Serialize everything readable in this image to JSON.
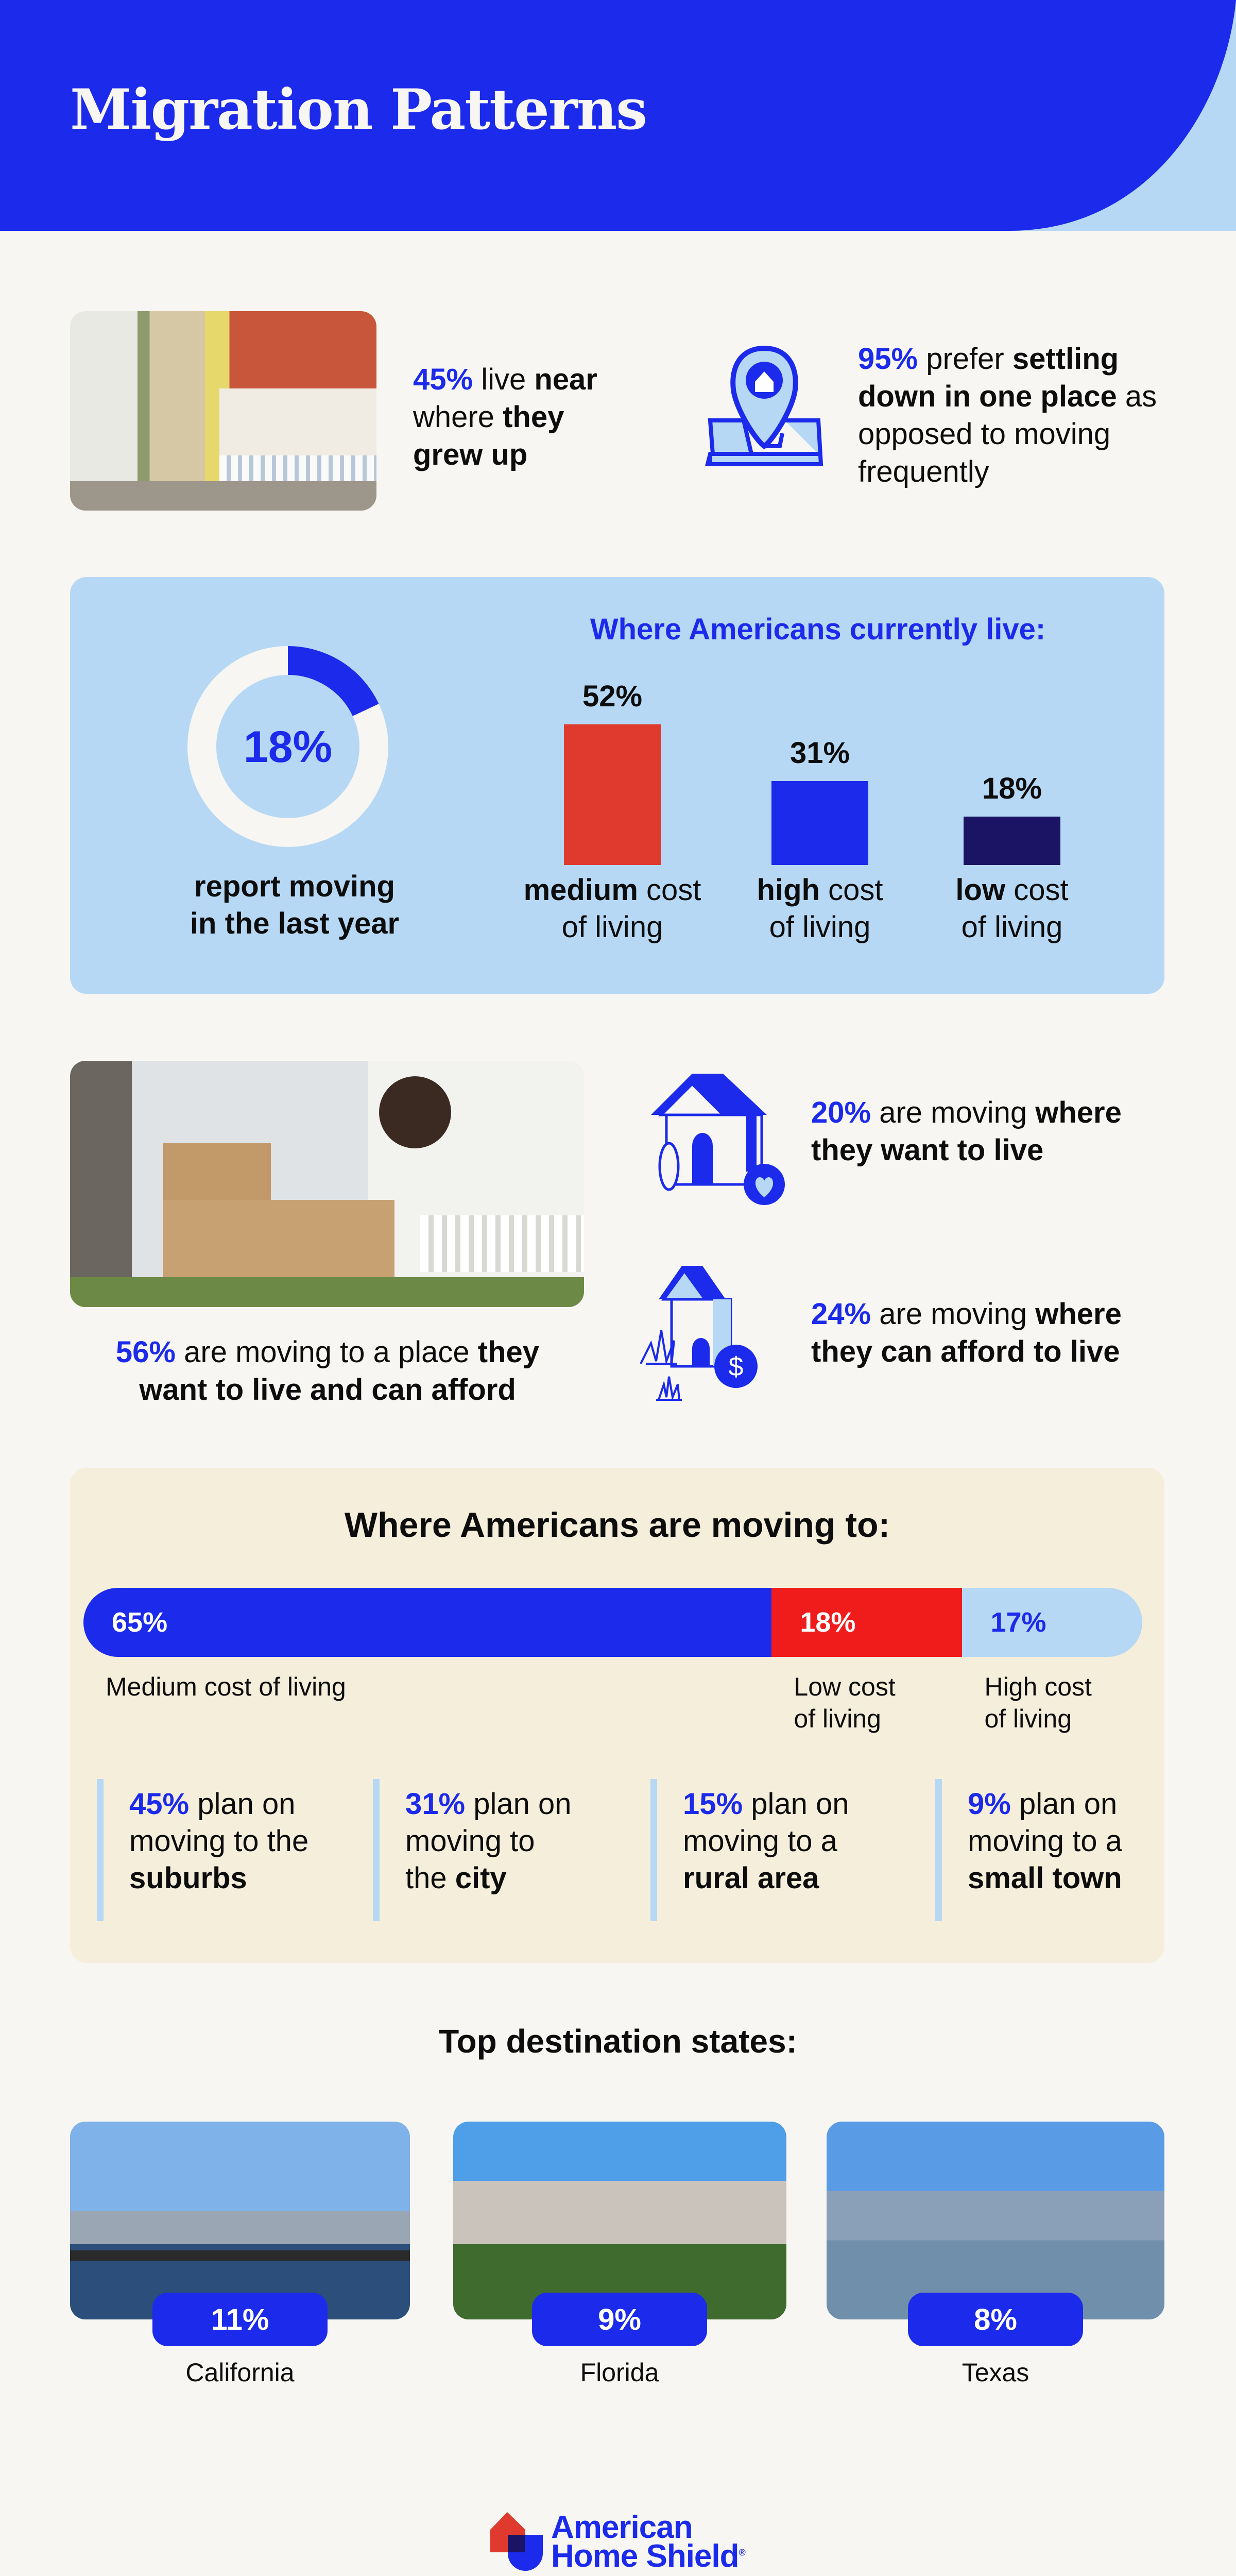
{
  "header": {
    "title": "Migration Patterns"
  },
  "colors": {
    "brand_blue": "#1b2aeb",
    "light_blue": "#b6d8f4",
    "red": "#e03a2e",
    "navy": "#1b1464",
    "beige": "#f5eedb",
    "background": "#f7f6f2"
  },
  "intro": {
    "grew_up": {
      "parts": [
        {
          "t": "45%"
        },
        {
          "t": " live "
        },
        {
          "t": "near"
        },
        {
          "t": "where "
        },
        {
          "t": "they"
        },
        {
          "t": "grew up"
        }
      ]
    },
    "settling": {
      "parts": [
        {
          "t": "95%"
        },
        {
          "t": " prefer "
        },
        {
          "t": "settling"
        },
        {
          "t": "down in one place"
        },
        {
          "t": " as"
        },
        {
          "t": "opposed to moving"
        },
        {
          "t": "frequently"
        }
      ],
      "icon": "map-pin-home-icon"
    }
  },
  "current": {
    "donut": {
      "value": 18,
      "label": "18%",
      "caption_line1": "report moving",
      "caption_line2": "in the last year"
    },
    "heading": "Where Americans currently live:",
    "bars": [
      {
        "value": 52,
        "label": "52%",
        "bold": "medium",
        "rest": " cost",
        "line2": "of living",
        "color": "#e03a2e"
      },
      {
        "value": 31,
        "label": "31%",
        "bold": "high",
        "rest": " cost",
        "line2": "of living",
        "color": "#1b2aeb"
      },
      {
        "value": 18,
        "label": "18%",
        "bold": "low",
        "rest": " cost",
        "line2": "of living",
        "color": "#1b1464"
      }
    ]
  },
  "moving": {
    "caption": {
      "parts": [
        {
          "t": "56%"
        },
        {
          "t": " are moving to a place "
        },
        {
          "t": "they"
        },
        {
          "t": "want to live and can afford"
        }
      ]
    },
    "want": {
      "parts": [
        {
          "t": "20%"
        },
        {
          "t": " are moving "
        },
        {
          "t": "where"
        },
        {
          "t": "they want to live"
        }
      ],
      "icon": "house-heart-icon"
    },
    "afford": {
      "parts": [
        {
          "t": "24%"
        },
        {
          "t": " are moving "
        },
        {
          "t": "where"
        },
        {
          "t": "they can afford to live"
        }
      ],
      "icon": "house-dollar-icon"
    }
  },
  "moving_to": {
    "heading": "Where Americans are moving to:",
    "segments": [
      {
        "value": 65,
        "label": "65%",
        "caption_line1": "Medium cost of living",
        "caption_line2": "",
        "color": "#1b2aeb",
        "text_color": "#ffffff"
      },
      {
        "value": 18,
        "label": "18%",
        "caption_line1": "Low cost",
        "caption_line2": "of living",
        "color": "#f01c1c",
        "text_color": "#ffffff"
      },
      {
        "value": 17,
        "label": "17%",
        "caption_line1": "High cost",
        "caption_line2": "of living",
        "color": "#b6d8f4",
        "text_color": "#1b2aeb"
      }
    ],
    "plans": [
      {
        "pct": "45%",
        "l1": " plan on",
        "l2": "moving to the",
        "l3": "suburbs"
      },
      {
        "pct": "31%",
        "l1": " plan on",
        "l2": "moving to",
        "l3pre": "the ",
        "l3": "city"
      },
      {
        "pct": "15%",
        "l1": " plan on",
        "l2": "moving to a",
        "l3": "rural area"
      },
      {
        "pct": "9%",
        "l1": " plan on",
        "l2": "moving to a",
        "l3": "small town"
      }
    ]
  },
  "destinations": {
    "heading": "Top destination states:",
    "states": [
      {
        "name": "California",
        "pct": "11%"
      },
      {
        "name": "Florida",
        "pct": "9%"
      },
      {
        "name": "Texas",
        "pct": "8%"
      }
    ]
  },
  "footer": {
    "logo_line1": "American",
    "logo_line2": "Home Shield",
    "registered": "®"
  }
}
